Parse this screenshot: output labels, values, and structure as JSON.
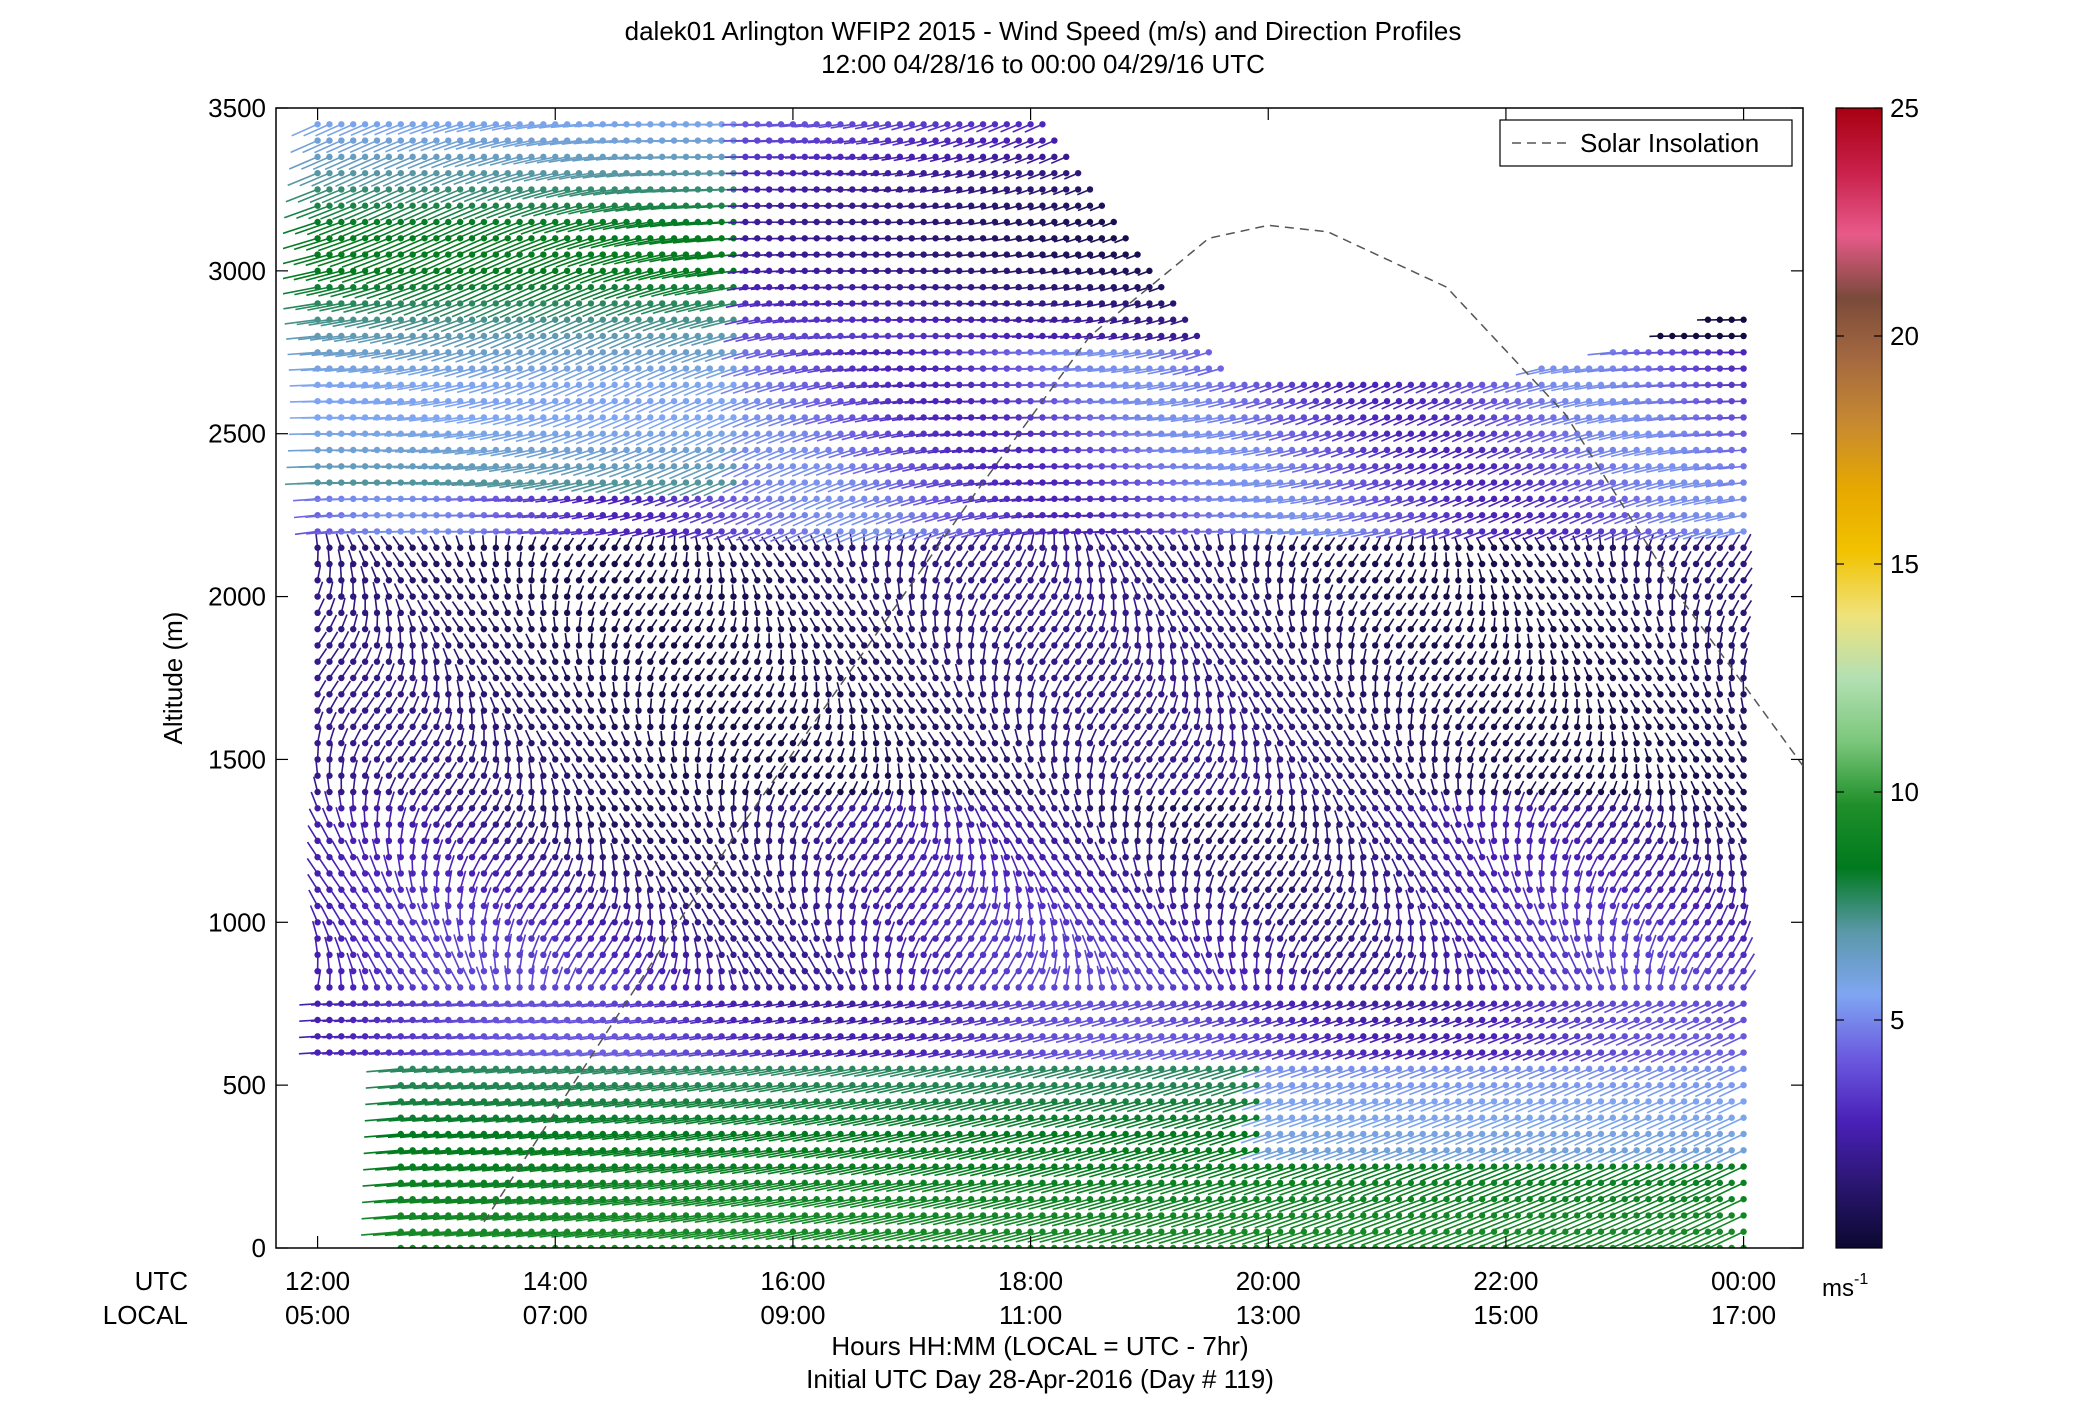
{
  "chart_data": {
    "type": "scatter",
    "title_line1": "dalek01 Arlington WFIP2 2015 - Wind Speed (m/s) and Direction Profiles",
    "title_line2": "12:00 04/28/16 to 00:00 04/29/16  UTC",
    "ylabel": "Altitude (m)",
    "xlabel_line1": "Hours HH:MM  (LOCAL = UTC - 7hr)",
    "xlabel_line2": "Initial UTC Day 28-Apr-2016 (Day # 119)",
    "row_labels": {
      "utc": "UTC",
      "local": "LOCAL"
    },
    "xlim_hours": [
      11.65,
      24.5
    ],
    "ylim": [
      0,
      3500
    ],
    "y_ticks": [
      "0",
      "500",
      "1000",
      "1500",
      "2000",
      "2500",
      "3000",
      "3500"
    ],
    "x_ticks_utc": [
      "12:00",
      "14:00",
      "16:00",
      "18:00",
      "20:00",
      "22:00",
      "00:00"
    ],
    "x_ticks_local": [
      "05:00",
      "07:00",
      "09:00",
      "11:00",
      "13:00",
      "15:00",
      "17:00"
    ],
    "x_tick_hours": [
      12,
      14,
      16,
      18,
      20,
      22,
      24
    ],
    "legend": {
      "entry": "Solar Insolation",
      "position": "top-right",
      "style": "dashed"
    },
    "colorbar": {
      "range": [
        0,
        25
      ],
      "ticks": [
        "5",
        "10",
        "15",
        "20",
        "25"
      ],
      "unit_base": "ms",
      "unit_exp": "-1",
      "colormap_stops": [
        "#0b0830",
        "#2a1670",
        "#4a20b8",
        "#6b5ae0",
        "#7fa6f2",
        "#5a98a8",
        "#007a1e",
        "#1f8f2a",
        "#7cc77c",
        "#b3e0b3",
        "#f0e27a",
        "#f2c200",
        "#e6a800",
        "#c88a30",
        "#a66a40",
        "#7a4a3a",
        "#e85a8a",
        "#c8204a",
        "#a80010"
      ]
    },
    "solar_curve": {
      "x_hours": [
        13.4,
        14.5,
        15.5,
        16.5,
        17.5,
        18.5,
        19.5,
        20.0,
        20.5,
        21.5,
        22.5,
        23.5,
        24.5
      ],
      "y_m": [
        80,
        700,
        1260,
        1780,
        2300,
        2800,
        3100,
        3140,
        3120,
        2950,
        2560,
        1980,
        1480
      ]
    },
    "barbs": {
      "time_step_hours": 0.1,
      "altitude_step_m": 50,
      "t_start": 12.0,
      "t_end": 24.0
    }
  }
}
